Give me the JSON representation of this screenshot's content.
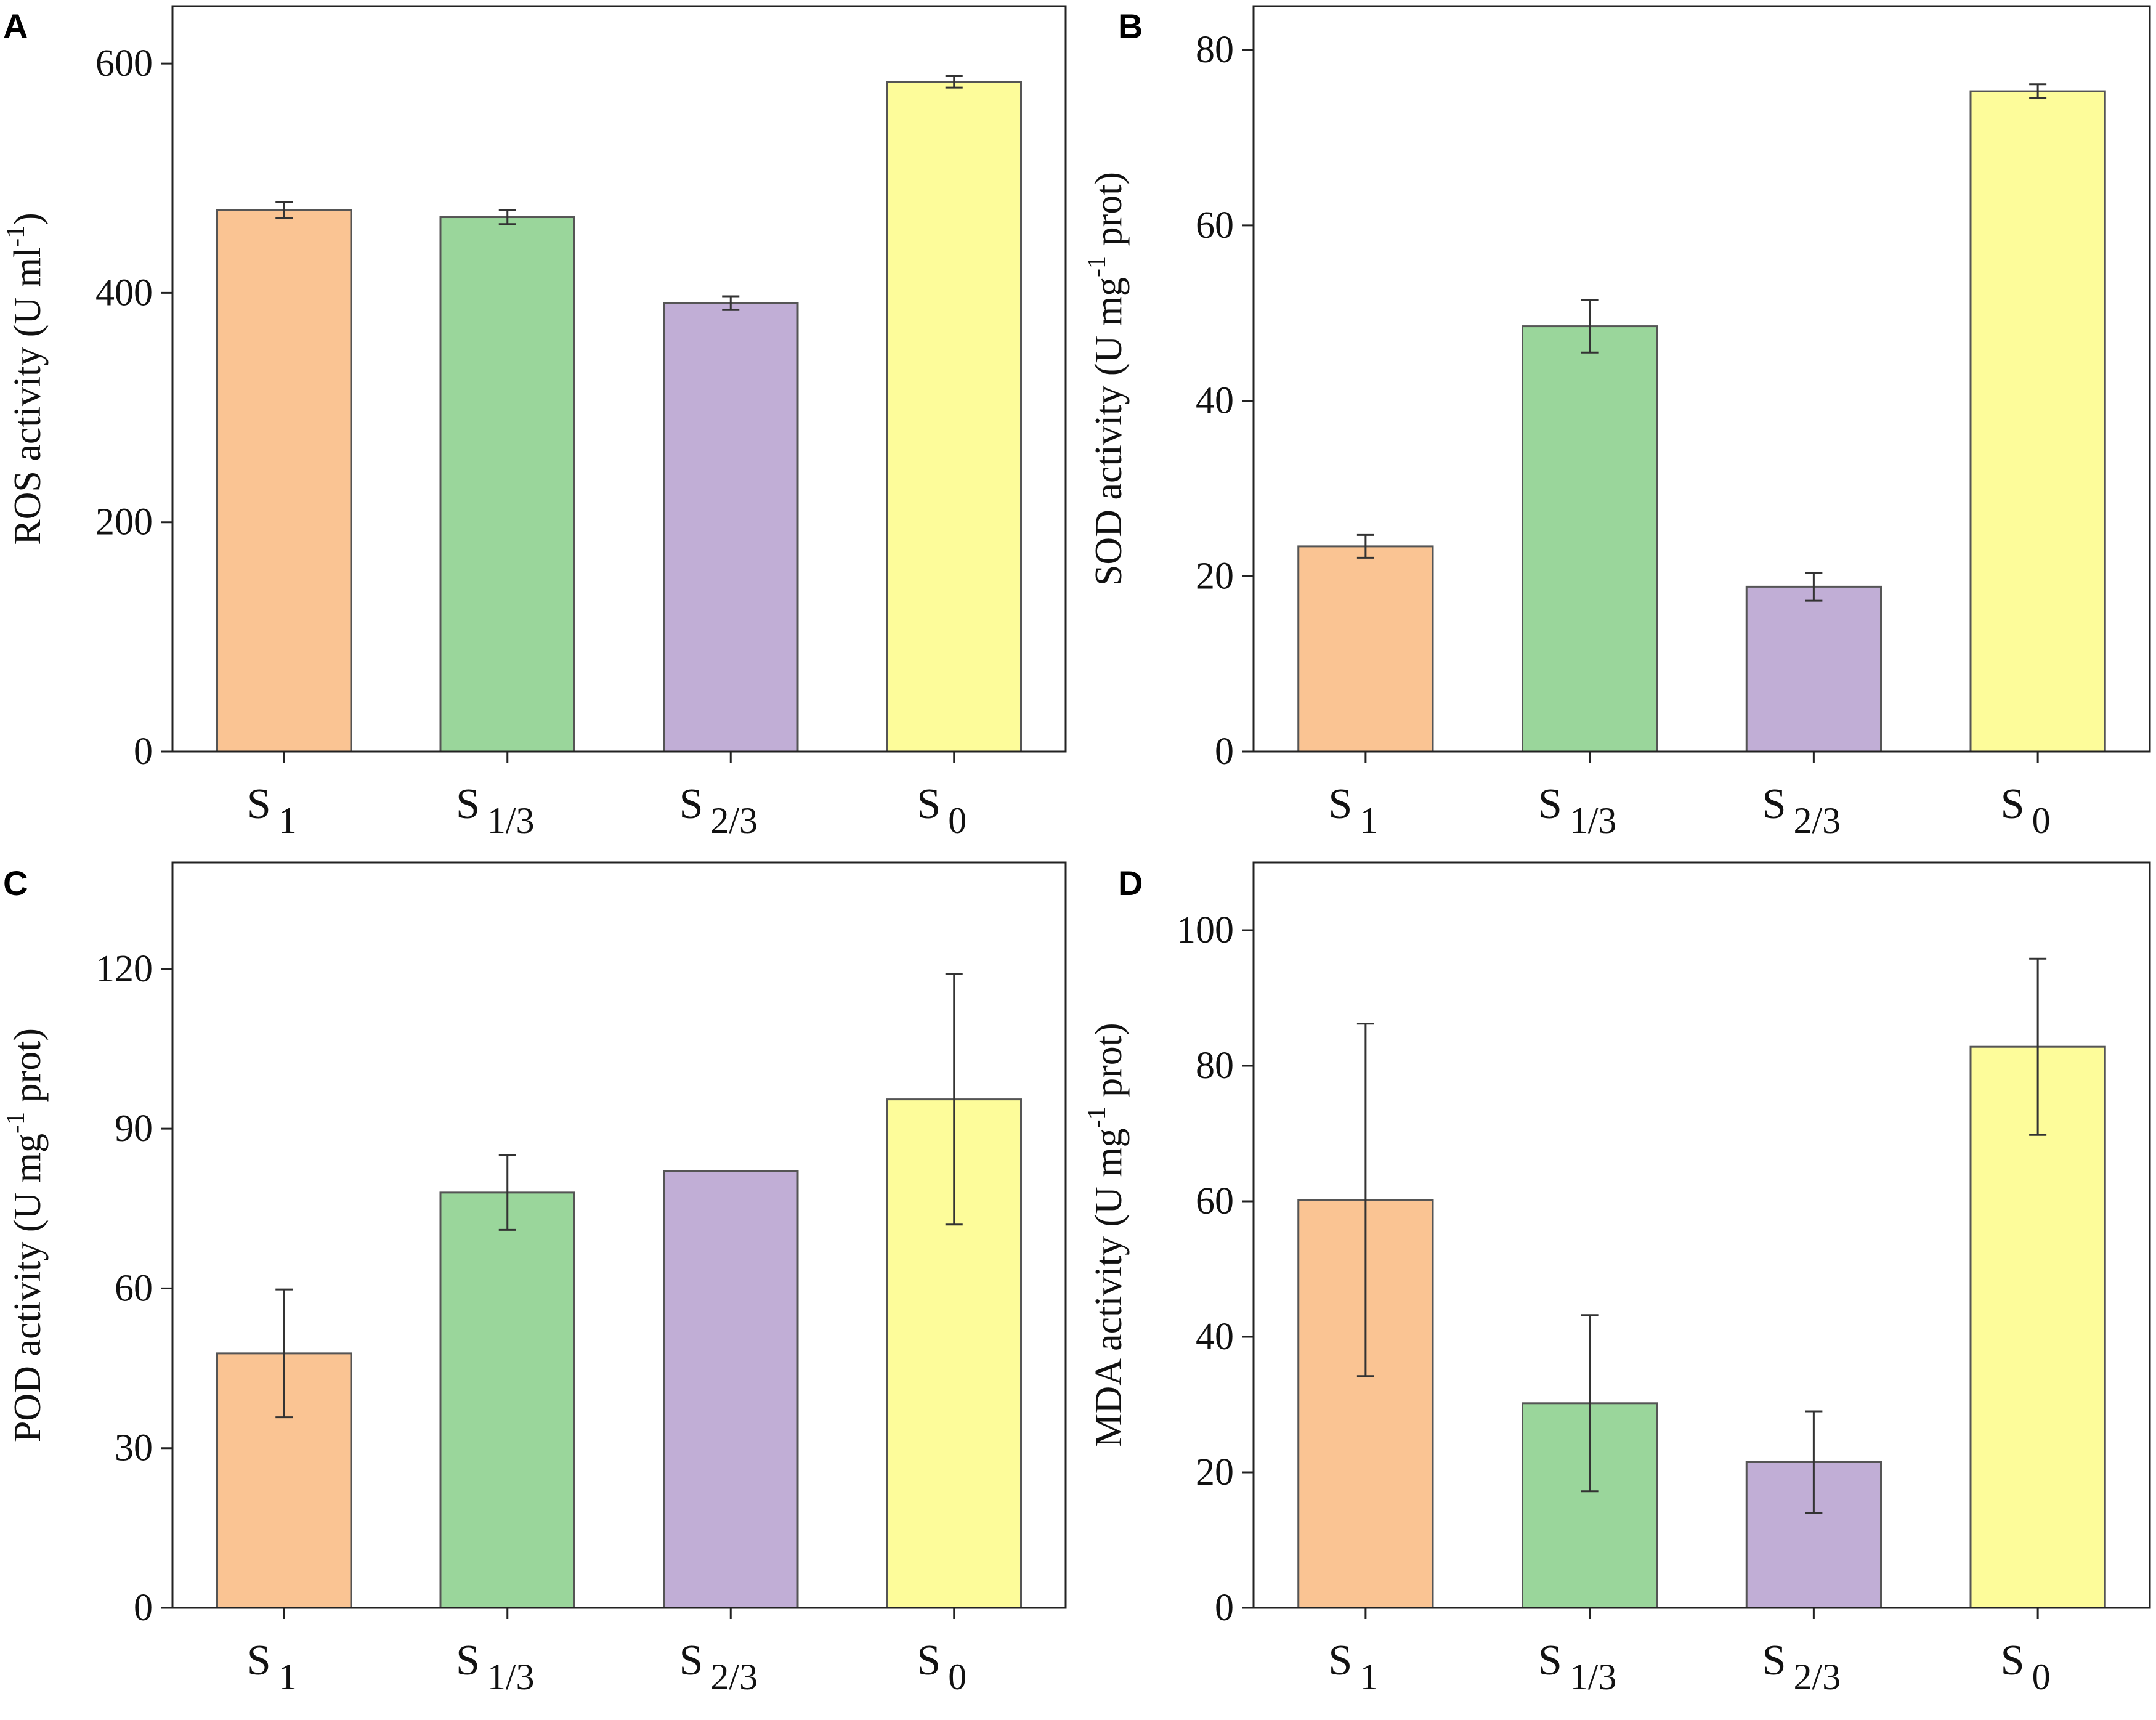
{
  "figure": {
    "colors": {
      "S1": "#fac493",
      "S1_3": "#9ad69b",
      "S2_3": "#c1aed6",
      "S0": "#fdfc9a",
      "axis": "#222222",
      "bar_edge": "#555555"
    }
  },
  "chart_data": [
    {
      "type": "bar",
      "panel": "A",
      "categories": [
        {
          "main": "S",
          "sub": "1"
        },
        {
          "main": "S",
          "sub": "1/3"
        },
        {
          "main": "S",
          "sub": "2/3"
        },
        {
          "main": "S",
          "sub": "0"
        }
      ],
      "values": [
        472,
        466,
        391,
        584
      ],
      "errors": [
        7,
        6,
        6,
        5
      ],
      "ylabel_main": "ROS activity (U ml",
      "ylabel_sup": "-1",
      "ylabel_tail": ")",
      "ylim": [
        0,
        650
      ],
      "yticks": [
        0,
        200,
        400,
        600
      ],
      "ytick_labels": [
        "0",
        "200",
        "400",
        "600"
      ]
    },
    {
      "type": "bar",
      "panel": "B",
      "categories": [
        {
          "main": "S",
          "sub": "1"
        },
        {
          "main": "S",
          "sub": "1/3"
        },
        {
          "main": "S",
          "sub": "2/3"
        },
        {
          "main": "S",
          "sub": "0"
        }
      ],
      "values": [
        23.4,
        48.5,
        18.8,
        75.3
      ],
      "errors": [
        1.3,
        3.0,
        1.6,
        0.8
      ],
      "ylabel_main": "SOD activity (U mg",
      "ylabel_sup": "-1",
      "ylabel_tail": " prot)",
      "ylim": [
        0,
        85
      ],
      "yticks": [
        0,
        20,
        40,
        60,
        80
      ],
      "ytick_labels": [
        "0",
        "20",
        "40",
        "60",
        "80"
      ]
    },
    {
      "type": "bar",
      "panel": "C",
      "categories": [
        {
          "main": "S",
          "sub": "1"
        },
        {
          "main": "S",
          "sub": "1/3"
        },
        {
          "main": "S",
          "sub": "2/3"
        },
        {
          "main": "S",
          "sub": "0"
        }
      ],
      "values": [
        47.8,
        78,
        82,
        95.5
      ],
      "errors": [
        12,
        7,
        0,
        23.5
      ],
      "ylabel_main": "POD activity (U mg",
      "ylabel_sup": "-1",
      "ylabel_tail": " prot)",
      "ylim": [
        0,
        140
      ],
      "yticks": [
        0,
        30,
        60,
        90,
        120
      ],
      "ytick_labels": [
        "0",
        "30",
        "60",
        "90",
        "120"
      ]
    },
    {
      "type": "bar",
      "panel": "D",
      "categories": [
        {
          "main": "S",
          "sub": "1"
        },
        {
          "main": "S",
          "sub": "1/3"
        },
        {
          "main": "S",
          "sub": "2/3"
        },
        {
          "main": "S",
          "sub": "0"
        }
      ],
      "values": [
        60.2,
        30.2,
        21.5,
        82.8
      ],
      "errors": [
        26,
        13,
        7.5,
        13
      ],
      "ylabel_main": "MDA activity (U mg",
      "ylabel_sup": "-1",
      "ylabel_tail": " prot)",
      "ylim": [
        0,
        110
      ],
      "yticks": [
        0,
        20,
        40,
        60,
        80,
        100
      ],
      "ytick_labels": [
        "0",
        "20",
        "40",
        "60",
        "80",
        "100"
      ]
    }
  ]
}
